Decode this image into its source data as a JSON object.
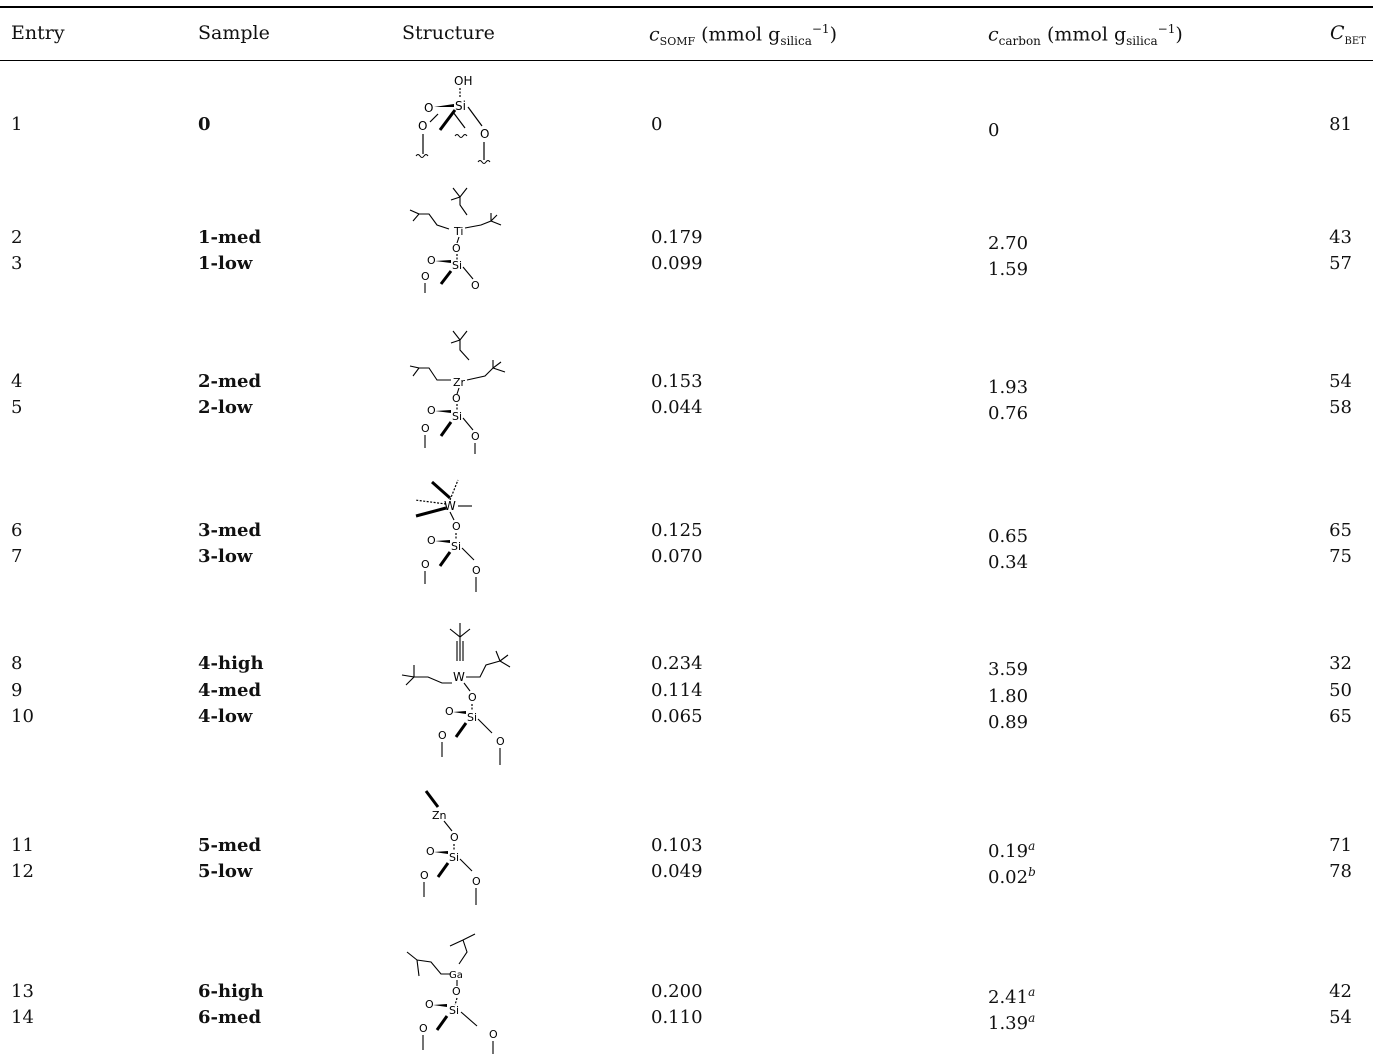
{
  "headers": {
    "entry": "Entry",
    "sample": "Sample",
    "structure": "Structure",
    "c_somf_sym": "c",
    "c_somf_sub": "SOMF",
    "c_somf_unit": " (mmol g",
    "c_somf_unit_sub": "silica",
    "c_somf_unit_sup": "−1",
    "c_somf_close": ")",
    "c_carbon_sym": "c",
    "c_carbon_sub": "carbon",
    "c_carbon_unit": " (mmol g",
    "c_carbon_unit_sub": "silica",
    "c_carbon_unit_sup": "−1",
    "c_carbon_close": ")",
    "c_bet_sym": "C",
    "c_bet_sub": "BET"
  },
  "rows": [
    {
      "entry": "1",
      "sample": "0",
      "c_somf": "0",
      "c_carbon": "0",
      "c_carbon_note": "",
      "c_bet": "81"
    },
    {
      "entry": "2",
      "sample": "1-med",
      "c_somf": "0.179",
      "c_carbon": "2.70",
      "c_carbon_note": "",
      "c_bet": "43"
    },
    {
      "entry": "3",
      "sample": "1-low",
      "c_somf": "0.099",
      "c_carbon": "1.59",
      "c_carbon_note": "",
      "c_bet": "57"
    },
    {
      "entry": "4",
      "sample": "2-med",
      "c_somf": "0.153",
      "c_carbon": "1.93",
      "c_carbon_note": "",
      "c_bet": "54"
    },
    {
      "entry": "5",
      "sample": "2-low",
      "c_somf": "0.044",
      "c_carbon": "0.76",
      "c_carbon_note": "",
      "c_bet": "58"
    },
    {
      "entry": "6",
      "sample": "3-med",
      "c_somf": "0.125",
      "c_carbon": "0.65",
      "c_carbon_note": "",
      "c_bet": "65"
    },
    {
      "entry": "7",
      "sample": "3-low",
      "c_somf": "0.070",
      "c_carbon": "0.34",
      "c_carbon_note": "",
      "c_bet": "75"
    },
    {
      "entry": "8",
      "sample": "4-high",
      "c_somf": "0.234",
      "c_carbon": "3.59",
      "c_carbon_note": "",
      "c_bet": "32"
    },
    {
      "entry": "9",
      "sample": "4-med",
      "c_somf": "0.114",
      "c_carbon": "1.80",
      "c_carbon_note": "",
      "c_bet": "50"
    },
    {
      "entry": "10",
      "sample": "4-low",
      "c_somf": "0.065",
      "c_carbon": "0.89",
      "c_carbon_note": "",
      "c_bet": "65"
    },
    {
      "entry": "11",
      "sample": "5-med",
      "c_somf": "0.103",
      "c_carbon": "0.19",
      "c_carbon_note": "a",
      "c_bet": "71"
    },
    {
      "entry": "12",
      "sample": "5-low",
      "c_somf": "0.049",
      "c_carbon": "0.02",
      "c_carbon_note": "b",
      "c_bet": "78"
    },
    {
      "entry": "13",
      "sample": "6-high",
      "c_somf": "0.200",
      "c_carbon": "2.41",
      "c_carbon_note": "a",
      "c_bet": "42"
    },
    {
      "entry": "14",
      "sample": "6-med",
      "c_somf": "0.110",
      "c_carbon": "1.39",
      "c_carbon_note": "a",
      "c_bet": "54"
    }
  ],
  "structures": [
    {
      "metal": "OH",
      "si": "Si",
      "o": "O"
    },
    {
      "metal": "Ti",
      "si": "Si",
      "o": "O"
    },
    {
      "metal": "Zr",
      "si": "Si",
      "o": "O"
    },
    {
      "metal": "W",
      "si": "Si",
      "o": "O"
    },
    {
      "metal": "W",
      "si": "Si",
      "o": "O"
    },
    {
      "metal": "Zn",
      "si": "Si",
      "o": "O"
    },
    {
      "metal": "Ga",
      "si": "Si",
      "o": "O"
    }
  ]
}
